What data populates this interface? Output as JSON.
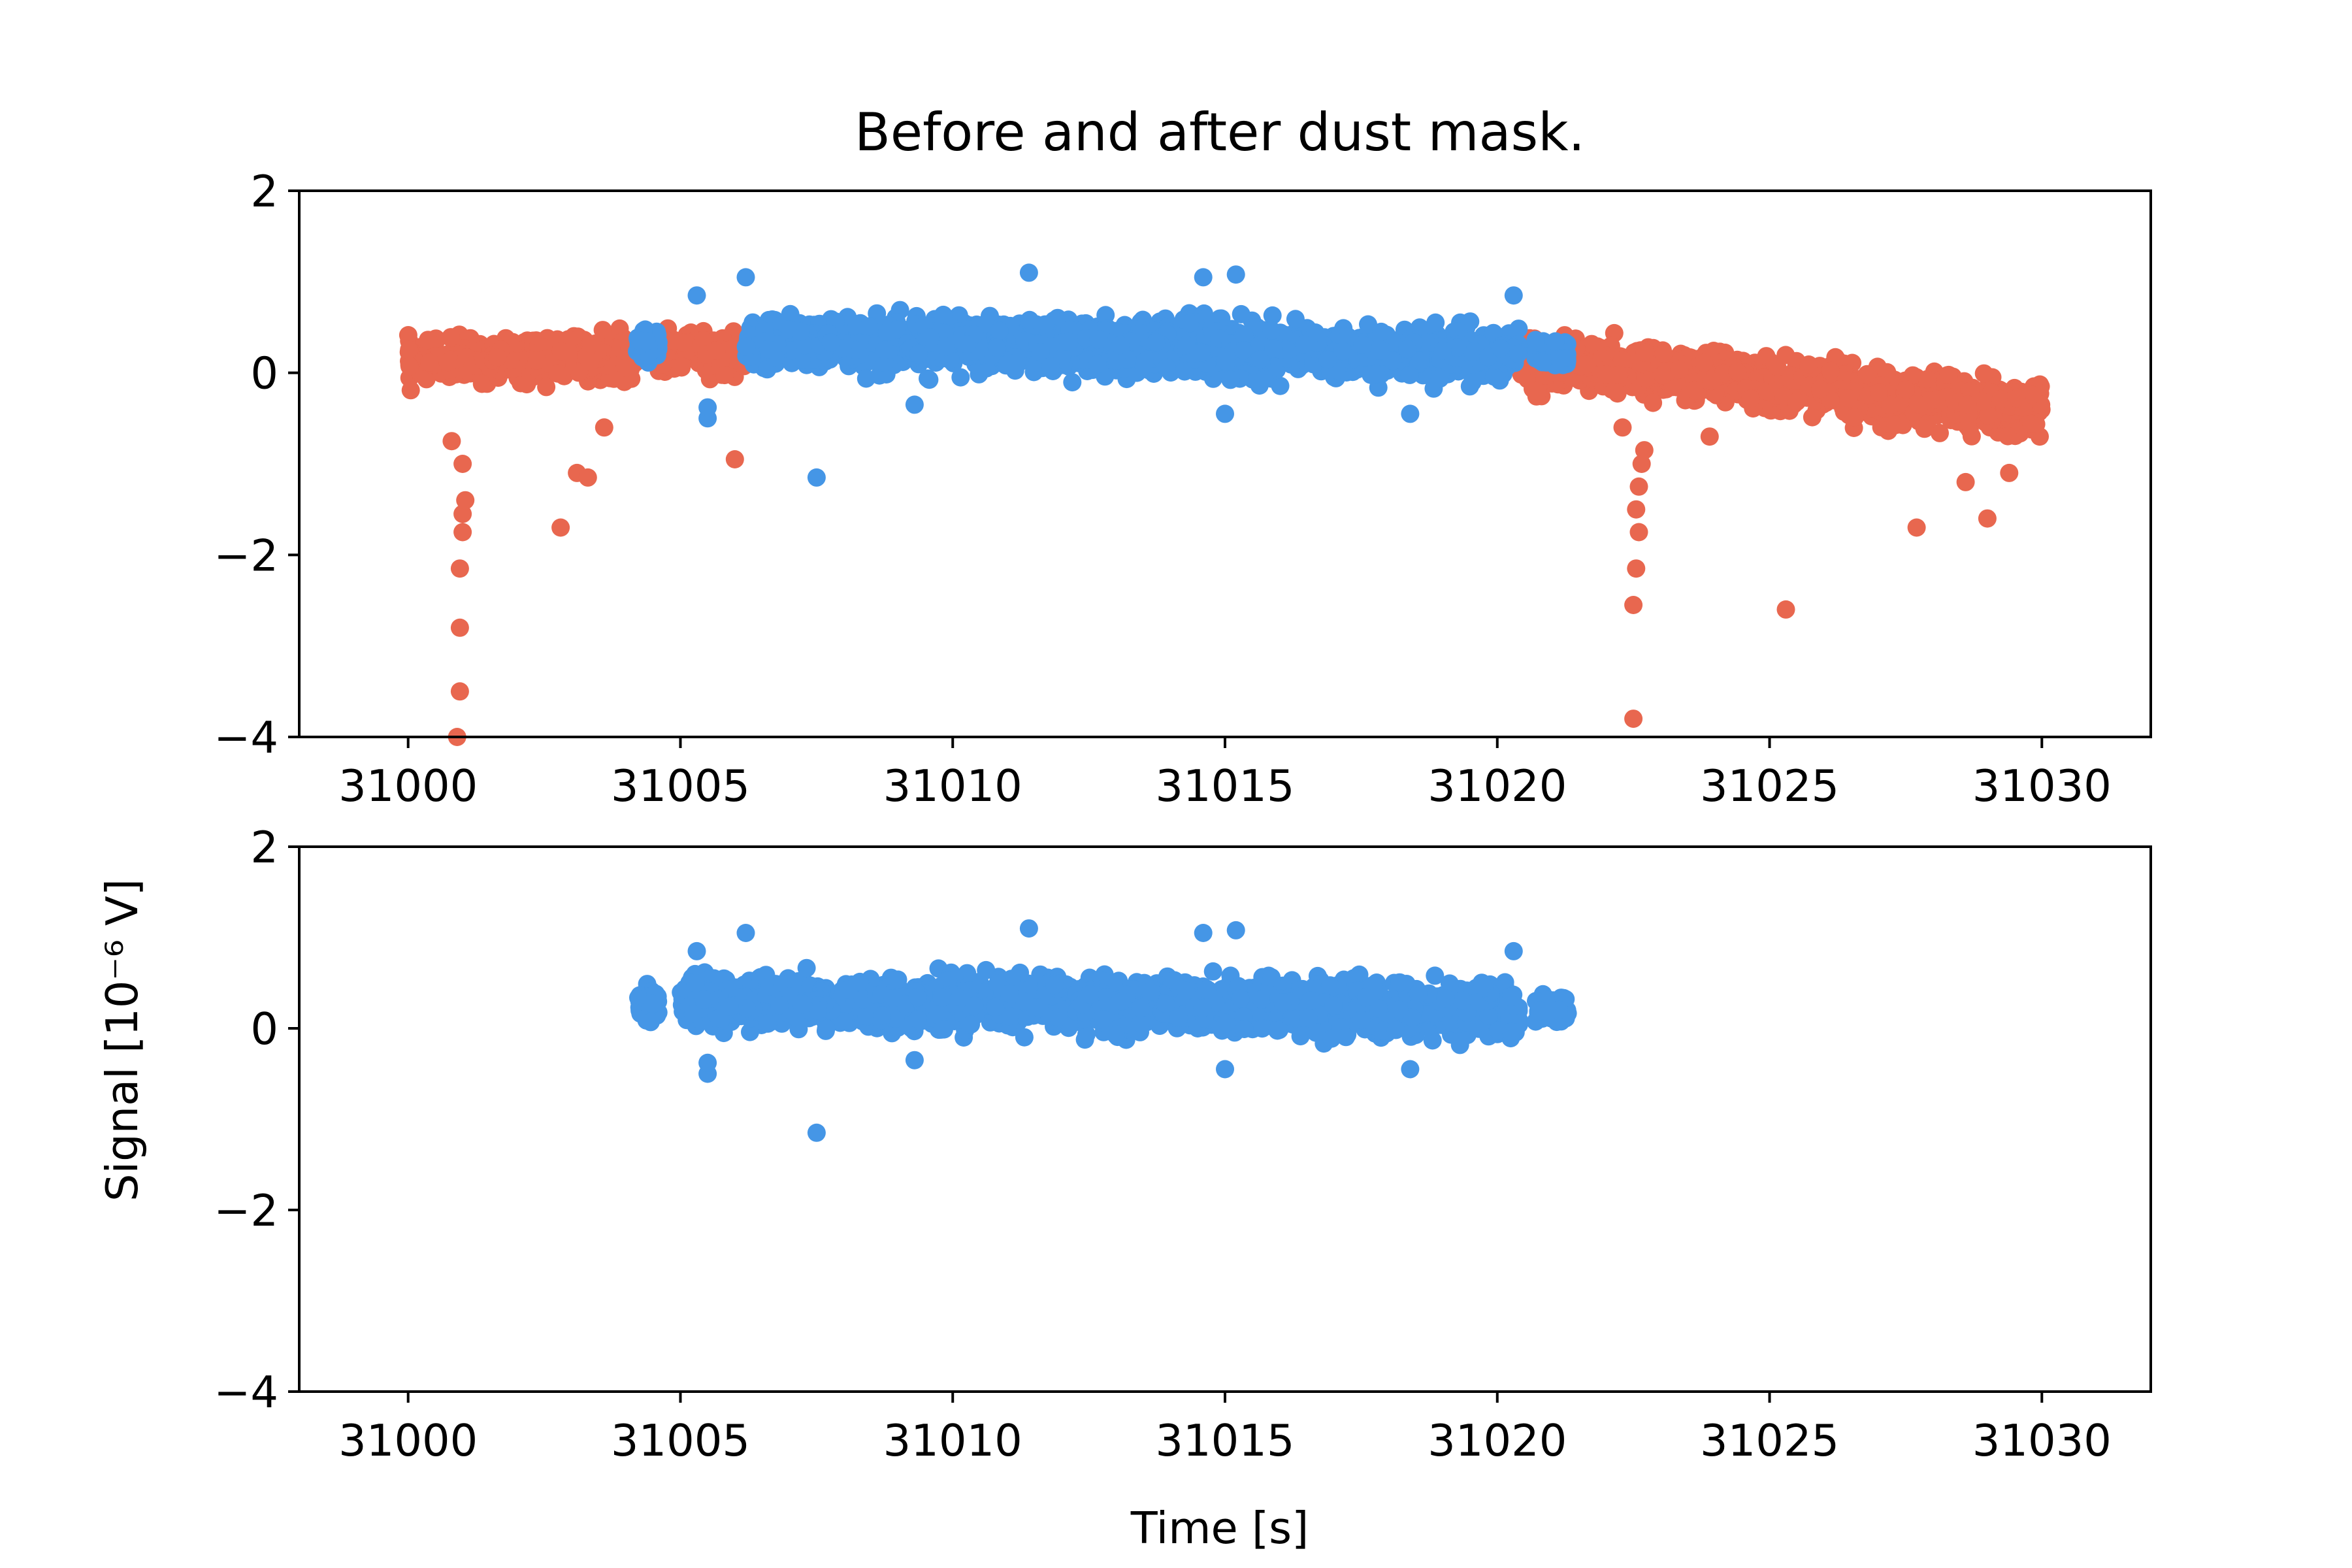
{
  "title": "Before and after dust mask.",
  "colors": {
    "masked": "#e8674f",
    "kept": "#4596e6"
  },
  "chart_data": [
    {
      "type": "scatter",
      "name": "before",
      "title": "Before and after dust mask.",
      "xlim": [
        30998,
        31032
      ],
      "ylim": [
        -4,
        2
      ],
      "xticks": [
        31000,
        31005,
        31010,
        31015,
        31020,
        31025,
        31030
      ],
      "yticks": [
        2,
        0,
        -2,
        -4
      ],
      "xtick_labels": [
        "31000",
        "31005",
        "31010",
        "31015",
        "31020",
        "31025",
        "31030"
      ],
      "ytick_labels": [
        "2",
        "0",
        "−2",
        "−4"
      ],
      "grid": false,
      "series": [
        {
          "color": "#e8674f",
          "segments": [
            {
              "x": [
                31000.0,
                31004.2
              ],
              "center": [
                0.12,
                0.18
              ],
              "spread": 0.24
            },
            {
              "x": [
                31004.6,
                31006.2
              ],
              "center": [
                0.2,
                0.22
              ],
              "spread": 0.22
            },
            {
              "x": [
                31020.4,
                31030.0
              ],
              "center": [
                0.15,
                -0.42
              ],
              "spread": 0.3
            }
          ],
          "outliers": [
            {
              "x": 31000.9,
              "y": -4.0
            },
            {
              "x": 31000.95,
              "y": -3.5
            },
            {
              "x": 31000.95,
              "y": -2.8
            },
            {
              "x": 31000.95,
              "y": -2.15
            },
            {
              "x": 31001.0,
              "y": -1.75
            },
            {
              "x": 31001.0,
              "y": -1.55
            },
            {
              "x": 31001.05,
              "y": -1.4
            },
            {
              "x": 31001.0,
              "y": -1.0
            },
            {
              "x": 31000.8,
              "y": -0.75
            },
            {
              "x": 31002.8,
              "y": -1.7
            },
            {
              "x": 31003.1,
              "y": -1.1
            },
            {
              "x": 31003.3,
              "y": -1.15
            },
            {
              "x": 31003.6,
              "y": -0.6
            },
            {
              "x": 31006.0,
              "y": -0.95
            },
            {
              "x": 31022.3,
              "y": -0.6
            },
            {
              "x": 31022.5,
              "y": -3.8
            },
            {
              "x": 31022.5,
              "y": -2.55
            },
            {
              "x": 31022.55,
              "y": -2.15
            },
            {
              "x": 31022.6,
              "y": -1.75
            },
            {
              "x": 31022.55,
              "y": -1.5
            },
            {
              "x": 31022.6,
              "y": -1.25
            },
            {
              "x": 31022.65,
              "y": -1.0
            },
            {
              "x": 31022.7,
              "y": -0.85
            },
            {
              "x": 31023.9,
              "y": -0.7
            },
            {
              "x": 31025.3,
              "y": -2.6
            },
            {
              "x": 31027.7,
              "y": -1.7
            },
            {
              "x": 31028.6,
              "y": -1.2
            },
            {
              "x": 31029.0,
              "y": -1.6
            },
            {
              "x": 31029.4,
              "y": -1.1
            }
          ]
        },
        {
          "color": "#4596e6",
          "segments": [
            {
              "x": [
                31004.2,
                31004.6
              ],
              "center": [
                0.3,
                0.3
              ],
              "spread": 0.2
            },
            {
              "x": [
                31006.2,
                31020.4
              ],
              "center": [
                0.35,
                0.2
              ],
              "spread": 0.3
            },
            {
              "x": [
                31020.7,
                31021.3
              ],
              "center": [
                0.25,
                0.2
              ],
              "spread": 0.15
            }
          ],
          "outliers": [
            {
              "x": 31007.5,
              "y": -1.15
            },
            {
              "x": 31005.5,
              "y": -0.5
            },
            {
              "x": 31005.5,
              "y": -0.38
            },
            {
              "x": 31006.2,
              "y": 1.05
            },
            {
              "x": 31011.4,
              "y": 1.1
            },
            {
              "x": 31014.6,
              "y": 1.05
            },
            {
              "x": 31015.2,
              "y": 1.08
            },
            {
              "x": 31009.3,
              "y": -0.35
            },
            {
              "x": 31015.0,
              "y": -0.45
            },
            {
              "x": 31018.4,
              "y": -0.45
            },
            {
              "x": 31020.3,
              "y": 0.85
            },
            {
              "x": 31005.3,
              "y": 0.85
            }
          ]
        }
      ]
    },
    {
      "type": "scatter",
      "name": "after",
      "xlabel": "Time [s]",
      "ylabel": "Signal [10⁻⁶ V]",
      "xlim": [
        30998,
        31032
      ],
      "ylim": [
        -4,
        2
      ],
      "xticks": [
        31000,
        31005,
        31010,
        31015,
        31020,
        31025,
        31030
      ],
      "yticks": [
        2,
        0,
        -2,
        -4
      ],
      "xtick_labels": [
        "31000",
        "31005",
        "31010",
        "31015",
        "31020",
        "31025",
        "31030"
      ],
      "ytick_labels": [
        "2",
        "0",
        "−2",
        "−4"
      ],
      "grid": false,
      "series": [
        {
          "color": "#4596e6",
          "segments": [
            {
              "x": [
                31004.2,
                31004.6
              ],
              "center": [
                0.3,
                0.3
              ],
              "spread": 0.2
            },
            {
              "x": [
                31005.0,
                31020.4
              ],
              "center": [
                0.3,
                0.2
              ],
              "spread": 0.3
            },
            {
              "x": [
                31020.7,
                31021.3
              ],
              "center": [
                0.25,
                0.2
              ],
              "spread": 0.15
            }
          ],
          "outliers": [
            {
              "x": 31007.5,
              "y": -1.15
            },
            {
              "x": 31005.5,
              "y": -0.5
            },
            {
              "x": 31005.5,
              "y": -0.38
            },
            {
              "x": 31006.2,
              "y": 1.05
            },
            {
              "x": 31011.4,
              "y": 1.1
            },
            {
              "x": 31014.6,
              "y": 1.05
            },
            {
              "x": 31015.2,
              "y": 1.08
            },
            {
              "x": 31009.3,
              "y": -0.35
            },
            {
              "x": 31015.0,
              "y": -0.45
            },
            {
              "x": 31018.4,
              "y": -0.45
            },
            {
              "x": 31020.3,
              "y": 0.85
            },
            {
              "x": 31005.3,
              "y": 0.85
            }
          ]
        }
      ]
    }
  ]
}
